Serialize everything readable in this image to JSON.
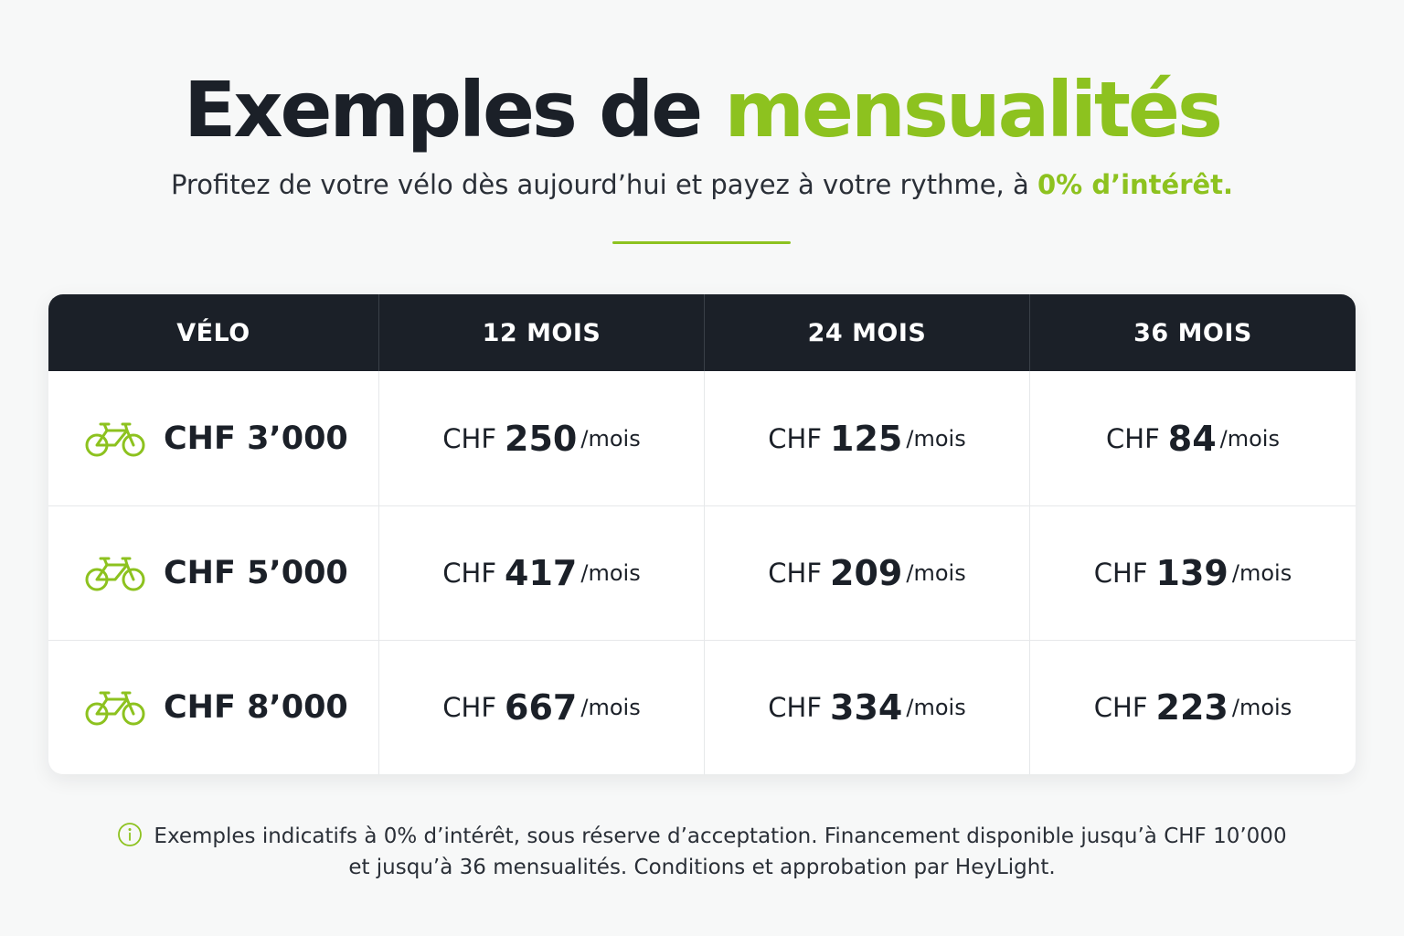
{
  "header": {
    "title_main": "Exemples de",
    "title_accent": "mensualités",
    "subtitle_main": "Profitez de votre vélo dès aujourd’hui et payez à votre rythme, à",
    "subtitle_accent": "0% d’intérêt."
  },
  "colors": {
    "accent": "#8dc21f",
    "header_bg": "#1b2028",
    "text": "#1b2028",
    "background": "#f7f8f8"
  },
  "table": {
    "columns": [
      "VÉLO",
      "12 MOIS",
      "24 MOIS",
      "36 MOIS"
    ],
    "currency": "CHF",
    "per_month": "/mois",
    "row_icon": "bike-icon",
    "rows": [
      {
        "price": "CHF 3’000",
        "m12": "250",
        "m24": "125",
        "m36": "84"
      },
      {
        "price": "CHF 5’000",
        "m12": "417",
        "m24": "209",
        "m36": "139"
      },
      {
        "price": "CHF 8’000",
        "m12": "667",
        "m24": "334",
        "m36": "223"
      }
    ]
  },
  "footnote": {
    "icon": "info-icon",
    "line1": "Exemples indicatifs à 0% d’intérêt, sous réserve d’acceptation. Financement disponible jusqu’à CHF 10’000",
    "line2": "et jusqu’à 36 mensualités. Conditions et approbation par HeyLight."
  }
}
